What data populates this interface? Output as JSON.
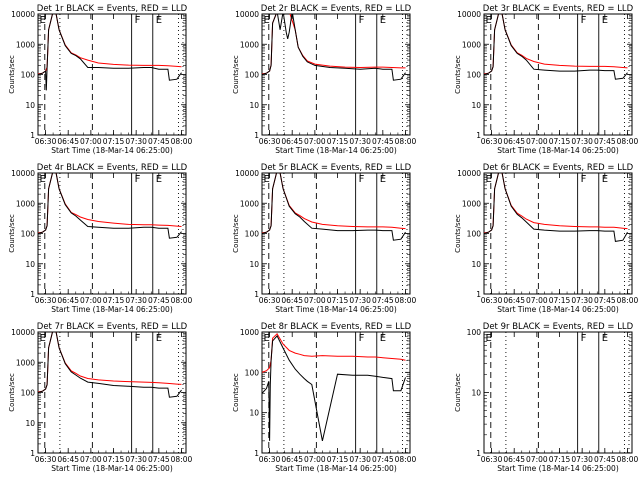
{
  "x_label": "Start Time (18-Mar-14 06:25:00)",
  "y_label": "Counts/sec",
  "x_ticks": [
    "06:30",
    "06:45",
    "07:00",
    "07:15",
    "07:30",
    "07:45",
    "08:00"
  ],
  "y_ticks": [
    "1",
    "10",
    "100",
    "1000",
    "10000"
  ],
  "colors": {
    "events": "#000000",
    "lld": "#ff0000"
  },
  "chart_data": [
    {
      "type": "line",
      "title": "Det 1r BLACK = Events, RED = LLD",
      "x_range_minutes": [
        0,
        98
      ],
      "y_range": [
        1,
        10000
      ],
      "y_scale": "log",
      "segment_markers": [
        "F",
        "E"
      ],
      "series": [
        {
          "name": "Events",
          "x": [
            0,
            3,
            5,
            5.5,
            6,
            7,
            10,
            12,
            14,
            18,
            22,
            25,
            28,
            33,
            40,
            50,
            60,
            70,
            75,
            80,
            86,
            87,
            92,
            95
          ],
          "values": [
            100,
            110,
            130,
            30,
            170,
            3000,
            12000,
            10000,
            3000,
            900,
            500,
            420,
            330,
            170,
            170,
            160,
            160,
            170,
            170,
            150,
            150,
            65,
            70,
            115
          ]
        },
        {
          "name": "LLD",
          "x": [
            0,
            3,
            5,
            6,
            7,
            10,
            12,
            14,
            18,
            22,
            25,
            28,
            33,
            40,
            50,
            60,
            70,
            75,
            80,
            86,
            92,
            95
          ],
          "values": [
            105,
            110,
            130,
            175,
            3000,
            12000,
            10000,
            3000,
            950,
            520,
            440,
            360,
            300,
            240,
            215,
            205,
            200,
            200,
            200,
            195,
            185,
            180
          ]
        }
      ]
    },
    {
      "type": "line",
      "title": "Det 2r BLACK = Events, RED = LLD",
      "x_range_minutes": [
        0,
        98
      ],
      "y_range": [
        1,
        10000
      ],
      "y_scale": "log",
      "segment_markers": [
        "F",
        "E"
      ],
      "series": [
        {
          "name": "Events",
          "x": [
            0,
            3,
            5,
            6,
            7,
            10,
            12,
            14,
            16,
            17,
            18,
            20,
            22,
            24,
            27,
            30,
            35,
            45,
            55,
            65,
            75,
            80,
            86,
            87,
            92,
            95
          ],
          "values": [
            100,
            110,
            130,
            200,
            5000,
            12000,
            3000,
            12000,
            2500,
            1500,
            2500,
            12000,
            3000,
            800,
            400,
            260,
            200,
            170,
            160,
            150,
            160,
            150,
            150,
            65,
            70,
            115
          ]
        },
        {
          "name": "LLD",
          "x": [
            0,
            3,
            5,
            6,
            7,
            10,
            14,
            18,
            22,
            24,
            27,
            30,
            35,
            45,
            55,
            65,
            75,
            80,
            86,
            92,
            95
          ],
          "values": [
            105,
            110,
            130,
            210,
            5000,
            12000,
            12000,
            12000,
            3000,
            800,
            420,
            280,
            220,
            190,
            175,
            170,
            175,
            175,
            170,
            165,
            165
          ]
        }
      ]
    },
    {
      "type": "line",
      "title": "Det 3r BLACK = Events, RED = LLD",
      "x_range_minutes": [
        0,
        98
      ],
      "y_range": [
        1,
        10000
      ],
      "y_scale": "log",
      "segment_markers": [
        "F",
        "E"
      ],
      "series": [
        {
          "name": "Events",
          "x": [
            0,
            3,
            5,
            6,
            7,
            10,
            12,
            14,
            18,
            22,
            25,
            28,
            33,
            40,
            50,
            60,
            70,
            75,
            80,
            86,
            87,
            92,
            95
          ],
          "values": [
            100,
            110,
            130,
            180,
            3000,
            12000,
            10000,
            3000,
            900,
            500,
            400,
            300,
            150,
            140,
            130,
            130,
            140,
            140,
            135,
            135,
            70,
            75,
            115
          ]
        },
        {
          "name": "LLD",
          "x": [
            0,
            3,
            5,
            6,
            7,
            10,
            12,
            14,
            18,
            22,
            25,
            28,
            33,
            40,
            50,
            60,
            70,
            75,
            80,
            86,
            92,
            95
          ],
          "values": [
            105,
            110,
            130,
            185,
            3000,
            12000,
            10000,
            3000,
            950,
            520,
            430,
            340,
            270,
            220,
            200,
            190,
            185,
            185,
            185,
            180,
            170,
            165
          ]
        }
      ]
    },
    {
      "type": "line",
      "title": "Det 4r BLACK = Events, RED = LLD",
      "x_range_minutes": [
        0,
        98
      ],
      "y_range": [
        1,
        10000
      ],
      "y_scale": "log",
      "segment_markers": [
        "F",
        "E"
      ],
      "series": [
        {
          "name": "Events",
          "x": [
            0,
            3,
            5,
            6,
            7,
            10,
            12,
            14,
            18,
            22,
            25,
            28,
            33,
            40,
            50,
            60,
            70,
            75,
            80,
            86,
            87,
            92,
            95
          ],
          "values": [
            100,
            110,
            130,
            180,
            3000,
            12000,
            10000,
            3000,
            900,
            480,
            380,
            280,
            170,
            160,
            150,
            150,
            160,
            160,
            150,
            150,
            70,
            75,
            115
          ]
        },
        {
          "name": "LLD",
          "x": [
            0,
            3,
            5,
            6,
            7,
            10,
            12,
            14,
            18,
            22,
            25,
            28,
            33,
            40,
            50,
            60,
            70,
            75,
            80,
            86,
            92,
            95
          ],
          "values": [
            105,
            110,
            130,
            185,
            3000,
            12000,
            10000,
            3000,
            950,
            500,
            420,
            350,
            290,
            250,
            220,
            200,
            195,
            195,
            190,
            185,
            175,
            170
          ]
        }
      ]
    },
    {
      "type": "line",
      "title": "Det 5r BLACK = Events, RED = LLD",
      "x_range_minutes": [
        0,
        98
      ],
      "y_range": [
        1,
        10000
      ],
      "y_scale": "log",
      "segment_markers": [
        "F",
        "E"
      ],
      "series": [
        {
          "name": "Events",
          "x": [
            0,
            3,
            5,
            6,
            7,
            10,
            12,
            14,
            18,
            22,
            25,
            28,
            33,
            40,
            50,
            60,
            70,
            75,
            80,
            86,
            87,
            92,
            95
          ],
          "values": [
            100,
            110,
            130,
            180,
            3000,
            12000,
            10000,
            3000,
            800,
            450,
            350,
            250,
            150,
            140,
            125,
            125,
            130,
            130,
            125,
            125,
            60,
            65,
            110
          ]
        },
        {
          "name": "LLD",
          "x": [
            0,
            3,
            5,
            6,
            7,
            10,
            12,
            14,
            18,
            22,
            25,
            28,
            33,
            40,
            50,
            60,
            70,
            75,
            80,
            86,
            92,
            95
          ],
          "values": [
            105,
            110,
            130,
            185,
            3000,
            12000,
            10000,
            3000,
            850,
            480,
            390,
            310,
            240,
            200,
            180,
            170,
            165,
            165,
            165,
            160,
            150,
            145
          ]
        }
      ]
    },
    {
      "type": "line",
      "title": "Det 6r BLACK = Events, RED = LLD",
      "x_range_minutes": [
        0,
        98
      ],
      "y_range": [
        1,
        10000
      ],
      "y_scale": "log",
      "segment_markers": [
        "F",
        "E"
      ],
      "series": [
        {
          "name": "Events",
          "x": [
            0,
            3,
            5,
            6,
            7,
            10,
            12,
            14,
            18,
            22,
            25,
            28,
            33,
            40,
            50,
            60,
            70,
            75,
            80,
            86,
            87,
            92,
            95
          ],
          "values": [
            100,
            110,
            130,
            180,
            3000,
            12000,
            10000,
            3000,
            800,
            430,
            330,
            240,
            140,
            130,
            120,
            120,
            125,
            125,
            120,
            120,
            55,
            60,
            110
          ]
        },
        {
          "name": "LLD",
          "x": [
            0,
            3,
            5,
            6,
            7,
            10,
            12,
            14,
            18,
            22,
            25,
            28,
            33,
            40,
            50,
            60,
            70,
            75,
            80,
            86,
            92,
            95
          ],
          "values": [
            105,
            110,
            130,
            185,
            3000,
            12000,
            10000,
            3000,
            850,
            470,
            380,
            300,
            230,
            200,
            180,
            170,
            165,
            165,
            160,
            160,
            150,
            145
          ]
        }
      ]
    },
    {
      "type": "line",
      "title": "Det 7r BLACK = Events, RED = LLD",
      "x_range_minutes": [
        0,
        98
      ],
      "y_range": [
        1,
        10000
      ],
      "y_scale": "log",
      "segment_markers": [
        "F",
        "E"
      ],
      "series": [
        {
          "name": "Events",
          "x": [
            0,
            3,
            5,
            6,
            7,
            10,
            12,
            14,
            18,
            22,
            25,
            28,
            33,
            40,
            50,
            60,
            70,
            75,
            80,
            86,
            87,
            92,
            95
          ],
          "values": [
            100,
            110,
            130,
            180,
            3000,
            12000,
            10000,
            3000,
            900,
            480,
            380,
            300,
            220,
            200,
            170,
            160,
            150,
            150,
            140,
            140,
            70,
            75,
            120
          ]
        },
        {
          "name": "LLD",
          "x": [
            0,
            3,
            5,
            6,
            7,
            10,
            12,
            14,
            18,
            22,
            25,
            28,
            33,
            40,
            50,
            60,
            70,
            75,
            80,
            86,
            92,
            95
          ],
          "values": [
            105,
            110,
            130,
            185,
            3000,
            12000,
            10000,
            3000,
            950,
            520,
            430,
            350,
            290,
            260,
            240,
            230,
            220,
            215,
            210,
            200,
            190,
            185
          ]
        }
      ]
    },
    {
      "type": "line",
      "title": "Det 8r BLACK = Events, RED = LLD",
      "x_range_minutes": [
        0,
        98
      ],
      "y_range": [
        1,
        1000
      ],
      "y_scale": "log",
      "segment_markers": [
        "F",
        "E"
      ],
      "series": [
        {
          "name": "Events",
          "x": [
            0,
            3,
            4.5,
            5,
            5.5,
            6,
            7,
            10,
            14,
            18,
            22,
            25,
            28,
            30,
            33,
            40,
            50,
            60,
            70,
            75,
            80,
            86,
            87,
            92,
            95
          ],
          "values": [
            30,
            40,
            60,
            2,
            50,
            200,
            600,
            800,
            400,
            200,
            120,
            90,
            70,
            60,
            50,
            2,
            90,
            85,
            85,
            80,
            75,
            70,
            35,
            35,
            75
          ]
        },
        {
          "name": "LLD",
          "x": [
            0,
            3,
            5,
            6,
            7,
            10,
            14,
            18,
            22,
            25,
            28,
            33,
            40,
            50,
            60,
            70,
            75,
            80,
            86,
            92,
            95
          ],
          "values": [
            100,
            110,
            130,
            200,
            700,
            900,
            500,
            350,
            300,
            280,
            260,
            250,
            260,
            250,
            250,
            240,
            240,
            230,
            220,
            210,
            200
          ]
        }
      ]
    },
    {
      "type": "line",
      "title": "Det 9r BLACK = Events, RED = LLD",
      "x_range_minutes": [
        0,
        98
      ],
      "y_range": [
        1,
        100
      ],
      "y_scale": "log",
      "segment_markers": [
        "F",
        "E"
      ],
      "series": [
        {
          "name": "Events",
          "x": [],
          "values": []
        },
        {
          "name": "LLD",
          "x": [],
          "values": []
        }
      ]
    }
  ]
}
